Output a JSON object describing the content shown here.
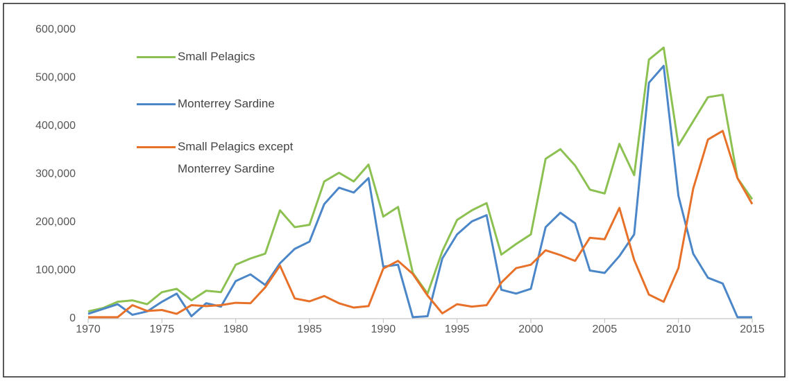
{
  "chart_data": {
    "type": "line",
    "x": [
      1970,
      1971,
      1972,
      1973,
      1974,
      1975,
      1976,
      1977,
      1978,
      1979,
      1980,
      1981,
      1982,
      1983,
      1984,
      1985,
      1986,
      1987,
      1988,
      1989,
      1990,
      1991,
      1992,
      1993,
      1994,
      1995,
      1996,
      1997,
      1998,
      1999,
      2000,
      2001,
      2002,
      2003,
      2004,
      2005,
      2006,
      2007,
      2008,
      2009,
      2010,
      2011,
      2012,
      2013,
      2014,
      2015
    ],
    "series": [
      {
        "name": "Small Pelagics",
        "color": "#8cc152",
        "values": [
          15000,
          22000,
          35000,
          38000,
          30000,
          55000,
          62000,
          38000,
          58000,
          55000,
          112000,
          125000,
          135000,
          225000,
          190000,
          195000,
          285000,
          303000,
          285000,
          320000,
          212000,
          232000,
          95000,
          52000,
          140000,
          205000,
          225000,
          240000,
          133000,
          155000,
          175000,
          332000,
          352000,
          318000,
          268000,
          260000,
          363000,
          298000,
          538000,
          563000,
          360000,
          410000,
          460000,
          465000,
          292000,
          248000
        ]
      },
      {
        "name": "Monterrey Sardine",
        "color": "#4a86c8",
        "values": [
          10000,
          20000,
          30000,
          8000,
          15000,
          35000,
          52000,
          5000,
          32000,
          25000,
          78000,
          92000,
          70000,
          115000,
          145000,
          160000,
          238000,
          272000,
          262000,
          292000,
          108000,
          112000,
          3000,
          5000,
          125000,
          175000,
          202000,
          215000,
          60000,
          52000,
          62000,
          190000,
          220000,
          198000,
          100000,
          95000,
          130000,
          175000,
          490000,
          525000,
          255000,
          135000,
          85000,
          73000,
          3000,
          3000
        ]
      },
      {
        "name": "Small Pelagics except Monterrey Sardine",
        "color": "#e8712a",
        "values": [
          3000,
          3000,
          3000,
          28000,
          16000,
          18000,
          10000,
          28000,
          26000,
          28000,
          33000,
          32000,
          65000,
          110000,
          42000,
          36000,
          47000,
          32000,
          23000,
          26000,
          104000,
          120000,
          93000,
          48000,
          11000,
          30000,
          25000,
          28000,
          75000,
          105000,
          112000,
          142000,
          132000,
          120000,
          168000,
          165000,
          230000,
          122000,
          50000,
          35000,
          105000,
          270000,
          372000,
          390000,
          292000,
          238000
        ]
      }
    ],
    "xlim": [
      1970,
      2015
    ],
    "xticks": [
      1970,
      1975,
      1980,
      1985,
      1990,
      1995,
      2000,
      2005,
      2010,
      2015
    ],
    "ylim": [
      0,
      600000
    ],
    "yticks": [
      0,
      {
        "value": 100000,
        "label": "100,000"
      },
      {
        "value": 200000,
        "label": "200,000"
      },
      {
        "value": 300000,
        "label": "300,000"
      },
      {
        "value": 400000,
        "label": "400,000"
      },
      {
        "value": 500000,
        "label": "500,000"
      },
      {
        "value": 600000,
        "label": "600,000"
      }
    ],
    "legend": "upper left",
    "grid": false
  }
}
